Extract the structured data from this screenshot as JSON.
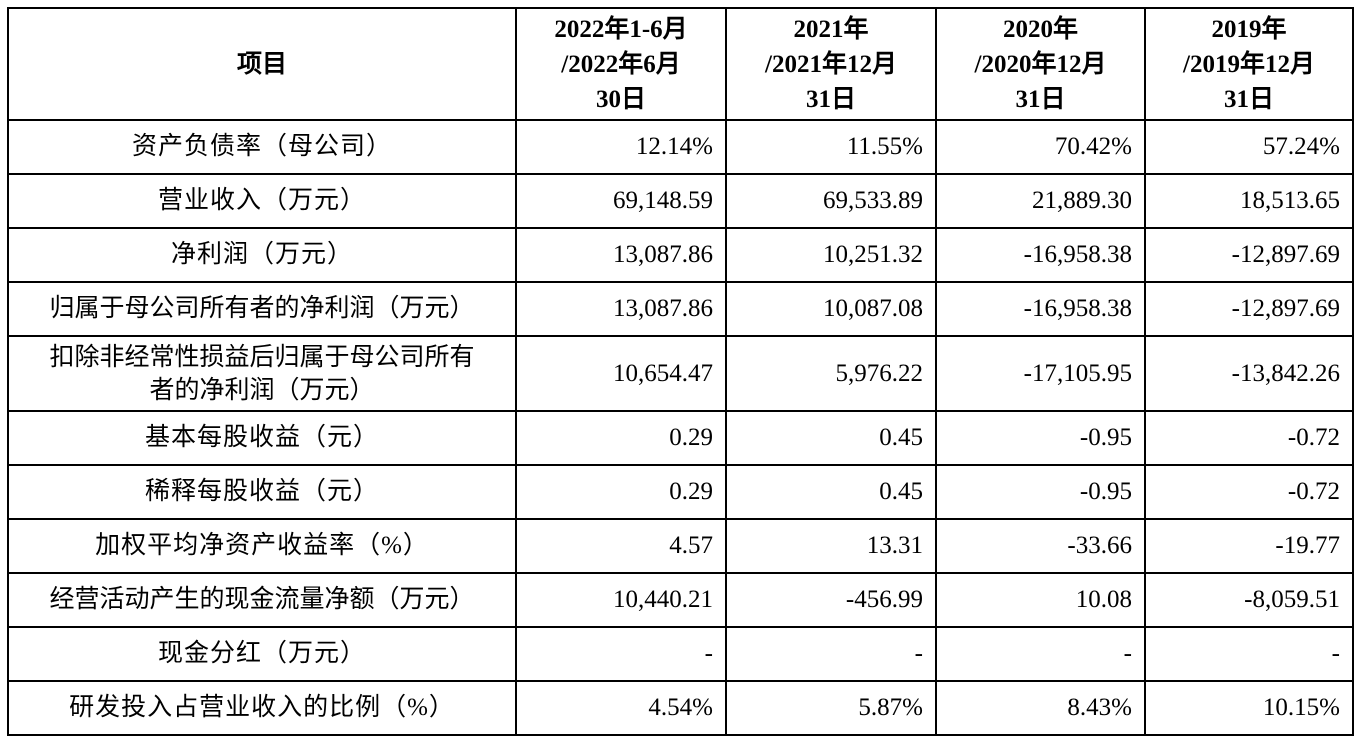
{
  "table": {
    "headers": [
      {
        "lines": [
          "项目"
        ]
      },
      {
        "lines": [
          "2022年1-6月",
          "/2022年6月",
          "30日"
        ]
      },
      {
        "lines": [
          "2021年",
          "/2021年12月",
          "31日"
        ]
      },
      {
        "lines": [
          "2020年",
          "/2020年12月",
          "31日"
        ]
      },
      {
        "lines": [
          "2019年",
          "/2019年12月",
          "31日"
        ]
      }
    ],
    "rows": [
      {
        "label": "资产负债率（母公司）",
        "values": [
          "12.14%",
          "11.55%",
          "70.42%",
          "57.24%"
        ]
      },
      {
        "label": "营业收入（万元）",
        "values": [
          "69,148.59",
          "69,533.89",
          "21,889.30",
          "18,513.65"
        ]
      },
      {
        "label": "净利润（万元）",
        "values": [
          "13,087.86",
          "10,251.32",
          "-16,958.38",
          "-12,897.69"
        ]
      },
      {
        "label": "归属于母公司所有者的净利润（万元）",
        "values": [
          "13,087.86",
          "10,087.08",
          "-16,958.38",
          "-12,897.69"
        ]
      },
      {
        "label_lines": [
          "扣除非经常性损益后归属于母公司所有",
          "者的净利润（万元）"
        ],
        "values": [
          "10,654.47",
          "5,976.22",
          "-17,105.95",
          "-13,842.26"
        ]
      },
      {
        "label": "基本每股收益（元）",
        "values": [
          "0.29",
          "0.45",
          "-0.95",
          "-0.72"
        ]
      },
      {
        "label": "稀释每股收益（元）",
        "values": [
          "0.29",
          "0.45",
          "-0.95",
          "-0.72"
        ]
      },
      {
        "label": "加权平均净资产收益率（%）",
        "values": [
          "4.57",
          "13.31",
          "-33.66",
          "-19.77"
        ]
      },
      {
        "label": "经营活动产生的现金流量净额（万元）",
        "values": [
          "10,440.21",
          "-456.99",
          "10.08",
          "-8,059.51"
        ]
      },
      {
        "label": "现金分红（万元）",
        "values": [
          "-",
          "-",
          "-",
          "-"
        ]
      },
      {
        "label": "研发投入占营业收入的比例（%）",
        "values": [
          "4.54%",
          "5.87%",
          "8.43%",
          "10.15%"
        ]
      }
    ]
  }
}
